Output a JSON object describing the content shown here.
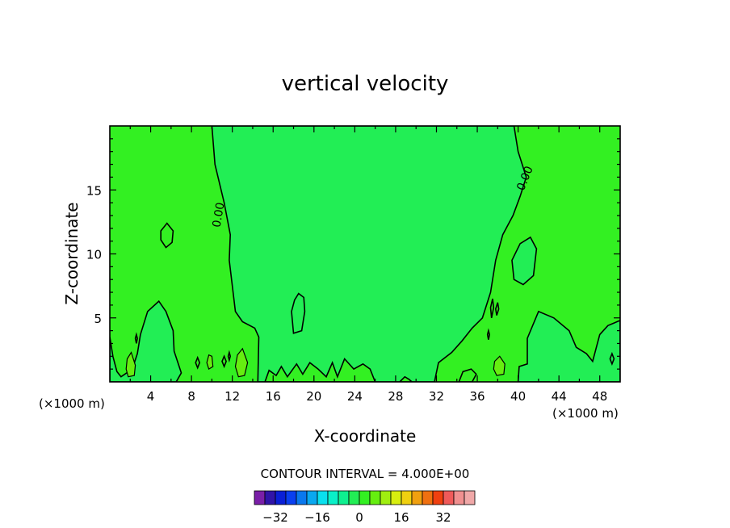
{
  "chart_data": {
    "type": "heatmap",
    "title": "vertical velocity",
    "xlabel": "X-coordinate",
    "ylabel": "Z-coordinate",
    "x_unit_left": "(×1000 m)",
    "x_unit_right": "(×1000 m)",
    "xlim": [
      0,
      50
    ],
    "ylim": [
      0,
      20
    ],
    "x_ticks": [
      4,
      8,
      12,
      16,
      20,
      24,
      28,
      32,
      36,
      40,
      44,
      48
    ],
    "y_ticks": [
      5,
      10,
      15
    ],
    "contour_interval_text": "CONTOUR INTERVAL = 4.000E+00",
    "zero_contour_labels": [
      "0.00",
      "0.00"
    ],
    "colorbar": {
      "levels": [
        -36,
        -32,
        -28,
        -24,
        -20,
        -16,
        -12,
        -8,
        -4,
        0,
        4,
        8,
        12,
        16,
        20,
        24,
        28,
        32,
        36
      ],
      "tick_values": [
        -32,
        -16,
        0,
        16,
        32
      ],
      "tick_labels": [
        "−32",
        "−16",
        "0",
        "16",
        "32"
      ],
      "colors": [
        "#7a1fa8",
        "#3014a8",
        "#0a1fd6",
        "#0a3ff0",
        "#0a78ee",
        "#0aa8f0",
        "#0ae0ee",
        "#0af0c8",
        "#0ff090",
        "#22ee55",
        "#33f022",
        "#66ee10",
        "#a0ee10",
        "#d8ee10",
        "#f0d010",
        "#f0a010",
        "#f07010",
        "#f04010",
        "#f05a5a",
        "#f09090",
        "#f0a8a8"
      ]
    },
    "fills": {
      "weak_positive": "#33f022",
      "weak_negative": "#22ee55",
      "moderate_positive": "#66ee10"
    },
    "regions": {
      "central_negative": [
        [
          10.0,
          20.0
        ],
        [
          10.3,
          17.0
        ],
        [
          11.2,
          14.0
        ],
        [
          11.8,
          11.5
        ],
        [
          11.7,
          9.5
        ],
        [
          12.0,
          7.5
        ],
        [
          12.3,
          5.5
        ],
        [
          13.0,
          4.7
        ],
        [
          14.2,
          4.2
        ],
        [
          14.6,
          3.5
        ],
        [
          14.5,
          0
        ],
        [
          31.8,
          0
        ],
        [
          32.2,
          1.5
        ],
        [
          33.5,
          2.3
        ],
        [
          34.5,
          3.2
        ],
        [
          35.5,
          4.2
        ],
        [
          36.5,
          5.0
        ],
        [
          37.3,
          7.0
        ],
        [
          37.8,
          9.5
        ],
        [
          38.5,
          11.5
        ],
        [
          39.5,
          13.0
        ],
        [
          40.2,
          14.5
        ],
        [
          40.8,
          16.0
        ],
        [
          40.0,
          18.0
        ],
        [
          39.6,
          20.0
        ]
      ],
      "right_negative": [
        [
          40.0,
          0
        ],
        [
          40.1,
          1.2
        ],
        [
          40.9,
          1.4
        ],
        [
          40.9,
          3.4
        ],
        [
          42.0,
          5.5
        ],
        [
          43.5,
          5.0
        ],
        [
          45.0,
          4.0
        ],
        [
          45.7,
          2.7
        ],
        [
          46.7,
          2.2
        ],
        [
          47.3,
          1.6
        ],
        [
          48.0,
          3.7
        ],
        [
          48.8,
          4.4
        ],
        [
          50.0,
          4.8
        ],
        [
          50.0,
          0
        ]
      ],
      "left_negative": [
        [
          0.0,
          3.5
        ],
        [
          0.3,
          2.0
        ],
        [
          0.7,
          0.8
        ],
        [
          1.1,
          0.4
        ],
        [
          2.2,
          1.0
        ],
        [
          2.7,
          2.2
        ],
        [
          3.0,
          3.7
        ],
        [
          3.7,
          5.5
        ],
        [
          4.8,
          6.3
        ],
        [
          5.5,
          5.5
        ],
        [
          6.2,
          4.0
        ],
        [
          6.3,
          2.4
        ],
        [
          7.0,
          0.7
        ],
        [
          6.5,
          0
        ],
        [
          0.0,
          0
        ]
      ],
      "negative_islands": [
        [
          [
            17.8,
            5.5
          ],
          [
            18.0,
            3.8
          ],
          [
            18.8,
            4.0
          ],
          [
            19.1,
            5.5
          ],
          [
            19.0,
            6.6
          ],
          [
            18.5,
            6.9
          ],
          [
            18.1,
            6.4
          ]
        ],
        [
          [
            39.6,
            8.0
          ],
          [
            40.5,
            7.6
          ],
          [
            41.5,
            8.3
          ],
          [
            41.8,
            10.4
          ],
          [
            41.2,
            11.3
          ],
          [
            40.2,
            10.8
          ],
          [
            39.4,
            9.5
          ]
        ]
      ],
      "positive_islands": [
        [
          [
            5.0,
            11.8
          ],
          [
            5.6,
            12.4
          ],
          [
            6.2,
            11.8
          ],
          [
            6.1,
            10.9
          ],
          [
            5.5,
            10.5
          ],
          [
            5.0,
            11.1
          ]
        ],
        [
          [
            15.2,
            0
          ],
          [
            15.6,
            0.9
          ],
          [
            16.3,
            0.5
          ],
          [
            16.8,
            1.2
          ],
          [
            17.4,
            0.4
          ],
          [
            18.3,
            1.4
          ],
          [
            18.9,
            0.6
          ],
          [
            19.6,
            1.5
          ],
          [
            20.4,
            1.0
          ],
          [
            21.2,
            0.4
          ],
          [
            21.8,
            1.5
          ],
          [
            22.3,
            0.4
          ],
          [
            23.0,
            1.8
          ],
          [
            23.9,
            1.0
          ],
          [
            24.8,
            1.4
          ],
          [
            25.5,
            1.0
          ],
          [
            26.0,
            0
          ]
        ],
        [
          [
            28.4,
            0
          ],
          [
            28.9,
            0.4
          ],
          [
            29.3,
            0.2
          ],
          [
            29.6,
            0
          ]
        ],
        [
          [
            34.2,
            0
          ],
          [
            34.6,
            0.8
          ],
          [
            35.4,
            1.0
          ],
          [
            35.9,
            0.6
          ],
          [
            35.5,
            0
          ]
        ]
      ],
      "moderate_islands": [
        [
          [
            1.6,
            1.0
          ],
          [
            1.8,
            0.4
          ],
          [
            2.4,
            0.5
          ],
          [
            2.5,
            1.3
          ],
          [
            2.1,
            2.3
          ],
          [
            1.7,
            1.8
          ]
        ],
        [
          [
            12.3,
            1.2
          ],
          [
            12.6,
            0.4
          ],
          [
            13.2,
            0.5
          ],
          [
            13.5,
            1.5
          ],
          [
            13.0,
            2.6
          ],
          [
            12.5,
            2.1
          ]
        ],
        [
          [
            9.5,
            1.5
          ],
          [
            9.7,
            1.0
          ],
          [
            10.1,
            1.2
          ],
          [
            10.0,
            2.0
          ],
          [
            9.7,
            2.1
          ]
        ],
        [
          [
            37.6,
            1.0
          ],
          [
            37.9,
            0.5
          ],
          [
            38.6,
            0.6
          ],
          [
            38.7,
            1.4
          ],
          [
            38.2,
            2.0
          ],
          [
            37.7,
            1.6
          ]
        ]
      ],
      "small_rings": [
        [
          [
            2.5,
            3.4
          ],
          [
            2.6,
            3.0
          ],
          [
            2.7,
            3.4
          ],
          [
            2.6,
            3.7
          ]
        ],
        [
          [
            8.4,
            1.5
          ],
          [
            8.6,
            1.1
          ],
          [
            8.8,
            1.5
          ],
          [
            8.6,
            1.9
          ]
        ],
        [
          [
            11.0,
            1.6
          ],
          [
            11.2,
            1.2
          ],
          [
            11.4,
            1.6
          ],
          [
            11.2,
            2.0
          ]
        ],
        [
          [
            11.6,
            2.0
          ],
          [
            11.7,
            1.7
          ],
          [
            11.8,
            2.0
          ],
          [
            11.7,
            2.3
          ]
        ],
        [
          [
            37.3,
            5.8
          ],
          [
            37.4,
            5.0
          ],
          [
            37.6,
            5.8
          ],
          [
            37.5,
            6.5
          ]
        ],
        [
          [
            37.8,
            5.7
          ],
          [
            37.9,
            5.2
          ],
          [
            38.1,
            5.7
          ],
          [
            38.0,
            6.2
          ]
        ],
        [
          [
            37.0,
            3.7
          ],
          [
            37.1,
            3.3
          ],
          [
            37.2,
            3.7
          ],
          [
            37.1,
            4.0
          ]
        ],
        [
          [
            49.0,
            1.8
          ],
          [
            49.2,
            1.4
          ],
          [
            49.4,
            1.8
          ],
          [
            49.2,
            2.2
          ]
        ]
      ]
    }
  }
}
